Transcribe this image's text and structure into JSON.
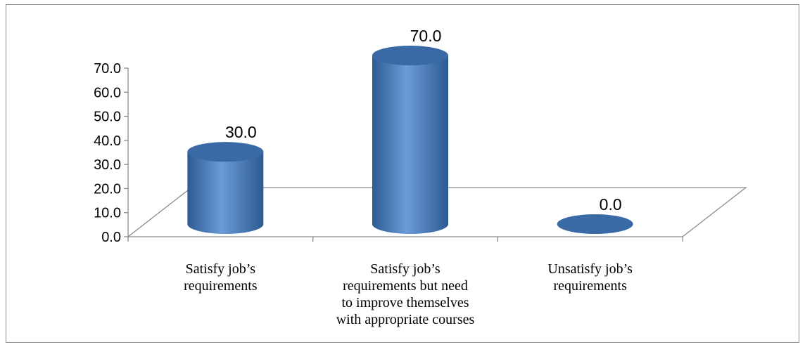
{
  "chart_data": {
    "type": "bar",
    "style": "3d-cylinder",
    "categories": [
      [
        "Satisfy job’s",
        "requirements"
      ],
      [
        "Satisfy job’s",
        "requirements but need",
        "to improve themselves",
        "with appropriate courses"
      ],
      [
        "Unsatisfy job’s",
        "requirements"
      ]
    ],
    "values": [
      30.0,
      70.0,
      0.0
    ],
    "data_labels": [
      "30.0",
      "70.0",
      "0.0"
    ],
    "y_ticks": [
      "0.0",
      "10.0",
      "20.0",
      "30.0",
      "40.0",
      "50.0",
      "60.0",
      "70.0"
    ],
    "ylim": [
      0,
      70
    ],
    "grid": false,
    "legend": "none",
    "bar_color": "#4a7ebb",
    "bar_color_light": "#6b9bd8",
    "bar_color_dark": "#2d5a91",
    "top_color": "#3a6aa6",
    "axis_color": "#8c8c8c"
  }
}
